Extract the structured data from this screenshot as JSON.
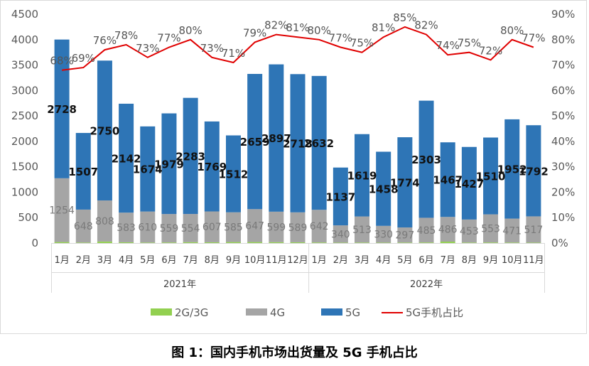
{
  "chart_data": {
    "type": "bar",
    "stacked": true,
    "caption": "图 1：国内手机市场出货量及 5G 手机占比",
    "groups": [
      {
        "label": "2021年",
        "categories": [
          "1月",
          "2月",
          "3月",
          "4月",
          "5月",
          "6月",
          "7月",
          "8月",
          "9月",
          "10月",
          "11月",
          "12月"
        ]
      },
      {
        "label": "2022年",
        "categories": [
          "1月",
          "2月",
          "3月",
          "4月",
          "5月",
          "6月",
          "7月",
          "8月",
          "9月",
          "10月",
          "11月"
        ]
      }
    ],
    "categories": [
      "1月",
      "2月",
      "3月",
      "4月",
      "5月",
      "6月",
      "7月",
      "8月",
      "9月",
      "10月",
      "11月",
      "12月",
      "1月",
      "2月",
      "3月",
      "4月",
      "5月",
      "6月",
      "7月",
      "8月",
      "9月",
      "10月",
      "11月"
    ],
    "series": [
      {
        "name": "2G/3G",
        "color": "#92d050",
        "values": [
          20,
          10,
          30,
          15,
          10,
          12,
          18,
          15,
          20,
          20,
          18,
          15,
          12,
          8,
          10,
          8,
          10,
          12,
          28,
          10,
          12,
          10,
          8
        ]
      },
      {
        "name": "4G",
        "color": "#a5a5a5",
        "values": [
          1254,
          648,
          808,
          583,
          610,
          559,
          554,
          607,
          585,
          647,
          599,
          589,
          642,
          340,
          513,
          330,
          297,
          485,
          486,
          453,
          553,
          471,
          517
        ]
      },
      {
        "name": "5G",
        "color": "#2e75b6",
        "values": [
          2728,
          1507,
          2750,
          2142,
          1674,
          1979,
          2283,
          1769,
          1512,
          2659,
          2897,
          2718,
          2632,
          1137,
          1619,
          1458,
          1774,
          2303,
          1467,
          1427,
          1510,
          1952,
          1792
        ]
      }
    ],
    "line": {
      "name": "5G手机占比",
      "color": "#e00000",
      "values": [
        68,
        69,
        76,
        78,
        73,
        77,
        80,
        73,
        71,
        79,
        82,
        81,
        80,
        77,
        75,
        81,
        85,
        82,
        74,
        75,
        72,
        80,
        77
      ]
    },
    "ylim": [
      0,
      4500
    ],
    "yticks": [
      "0",
      "500",
      "1000",
      "1500",
      "2000",
      "2500",
      "3000",
      "3500",
      "4000",
      "4500"
    ],
    "y2lim": [
      0,
      90
    ],
    "y2ticks": [
      "0%",
      "10%",
      "20%",
      "30%",
      "40%",
      "50%",
      "60%",
      "70%",
      "80%",
      "90%"
    ],
    "legend": {
      "position": "bottom",
      "items": [
        "2G/3G",
        "4G",
        "5G",
        "5G手机占比"
      ]
    },
    "grid": false
  }
}
